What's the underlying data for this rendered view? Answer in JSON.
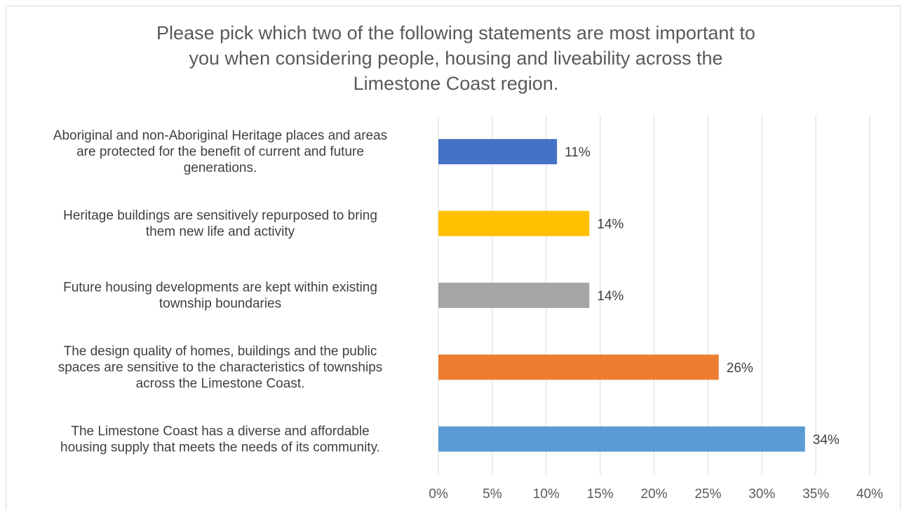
{
  "chart_data": {
    "type": "bar",
    "orientation": "horizontal",
    "title_lines": [
      "Please pick which two of the following statements are most important to",
      "you when considering people, housing and liveability across the",
      "Limestone Coast region."
    ],
    "categories": [
      {
        "lines": [
          "Aboriginal and non-Aboriginal Heritage places and areas",
          "are protected for the benefit of current and future",
          "generations."
        ],
        "value": 11,
        "label": "11%",
        "color": "#4472C4"
      },
      {
        "lines": [
          "Heritage buildings are sensitively repurposed to bring",
          "them new life and activity"
        ],
        "value": 14,
        "label": "14%",
        "color": "#FFC000"
      },
      {
        "lines": [
          "Future housing developments are kept within existing",
          "township boundaries"
        ],
        "value": 14,
        "label": "14%",
        "color": "#A5A5A5"
      },
      {
        "lines": [
          "The design quality of homes, buildings and the public",
          "spaces are sensitive to the characteristics of townships",
          "across the Limestone Coast."
        ],
        "value": 26,
        "label": "26%",
        "color": "#ED7D31"
      },
      {
        "lines": [
          "The Limestone Coast has a diverse and affordable",
          "housing supply that meets the needs of its community."
        ],
        "value": 34,
        "label": "34%",
        "color": "#5B9BD5"
      }
    ],
    "xlim": [
      0,
      40
    ],
    "x_ticks": [
      0,
      5,
      10,
      15,
      20,
      25,
      30,
      35,
      40
    ],
    "x_tick_labels": [
      "0%",
      "5%",
      "10%",
      "15%",
      "20%",
      "25%",
      "30%",
      "35%",
      "40%"
    ],
    "grid": true,
    "gridline_color": "#d9d9d9"
  }
}
